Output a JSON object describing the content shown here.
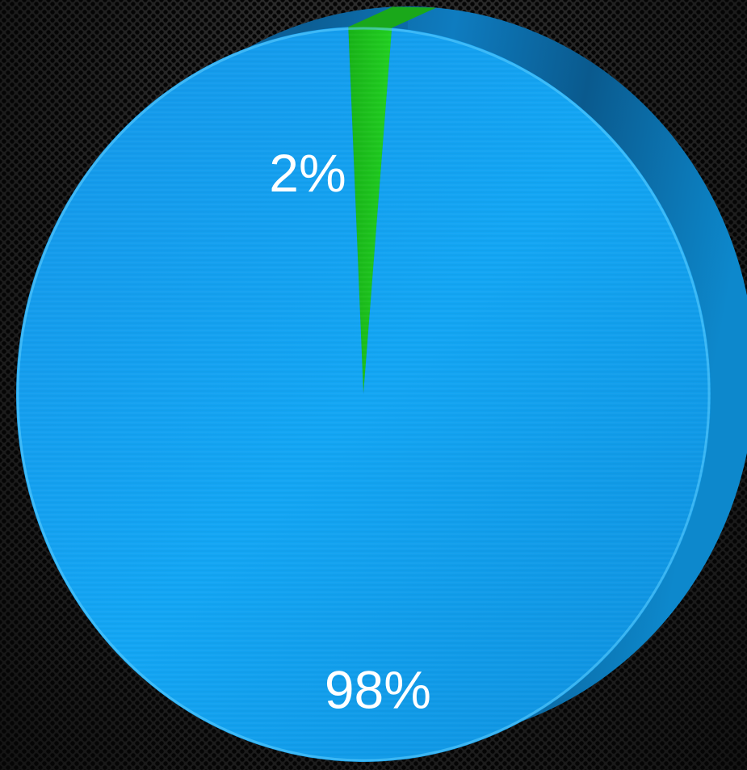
{
  "chart_data": {
    "type": "pie",
    "style": "3d-tilted",
    "title": "",
    "slices": [
      {
        "label": "2%",
        "value": 2,
        "color": "#1ec81e"
      },
      {
        "label": "98%",
        "value": 98,
        "color": "#13a3f0"
      }
    ],
    "legend": "none"
  }
}
